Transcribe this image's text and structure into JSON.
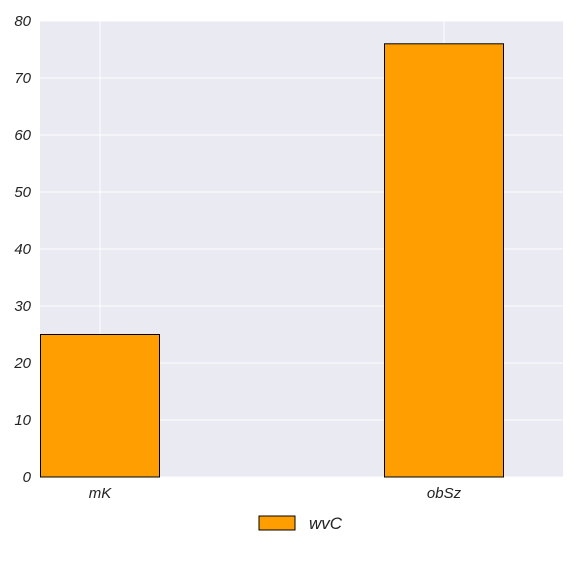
{
  "chart_data": {
    "type": "bar",
    "categories": [
      "mK",
      "obSz"
    ],
    "series": [
      {
        "name": "wvC",
        "values": [
          25,
          76
        ]
      }
    ],
    "ylim": [
      0,
      80
    ],
    "yticks": [
      0,
      10,
      20,
      30,
      40,
      50,
      60,
      70,
      80
    ],
    "grid": true,
    "legend": "bottom-center",
    "colors": {
      "bar": "#ff9e00",
      "bar_edge": "#000000",
      "plot_background": "#eaeaf2",
      "grid": "#ffffff"
    }
  }
}
